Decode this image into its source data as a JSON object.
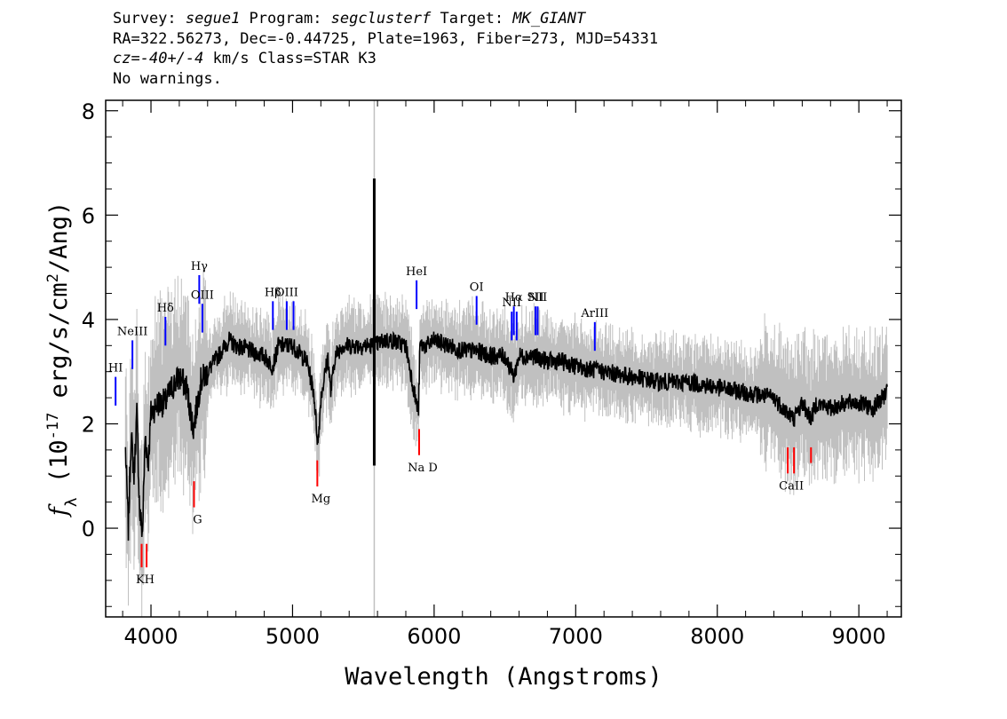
{
  "header": {
    "survey_label": "Survey: ",
    "survey_value": "segue1",
    "program_label": " Program: ",
    "program_value": "segclusterf",
    "target_label": " Target: ",
    "target_value": "MK_GIANT",
    "line2": "RA=322.56273, Dec=-0.44725, Plate=1963, Fiber=273, MJD=54331",
    "cz_label": "cz",
    "cz_eq": "=",
    "cz_value": "-40+/-4",
    "cz_rest": " km/s Class=STAR K3",
    "warnings": "No warnings."
  },
  "chart_data": {
    "type": "line",
    "xlabel": "Wavelength (Angstroms)",
    "ylabel": "f_λ (10^-17 erg/s/cm^2/Ang)",
    "xlim": [
      3680,
      9300
    ],
    "ylim": [
      -1.7,
      8.2
    ],
    "xticks": [
      "4000",
      "5000",
      "6000",
      "7000",
      "8000",
      "9000"
    ],
    "yticks": [
      "0",
      "2",
      "4",
      "6",
      "8"
    ],
    "colors": {
      "flux": "#000000",
      "error": "#c0c0c0",
      "emission": "#0000ff",
      "absorption": "#ff0000"
    },
    "flux_series": {
      "name": "",
      "x": [
        3820,
        3840,
        3860,
        3880,
        3900,
        3920,
        3940,
        3960,
        3980,
        4000,
        4050,
        4100,
        4150,
        4200,
        4250,
        4300,
        4350,
        4400,
        4450,
        4500,
        4550,
        4600,
        4700,
        4800,
        4860,
        4900,
        5000,
        5100,
        5150,
        5170,
        5180,
        5200,
        5250,
        5270,
        5300,
        5350,
        5400,
        5500,
        5577,
        5650,
        5700,
        5800,
        5880,
        5890,
        5900,
        5950,
        6000,
        6100,
        6200,
        6300,
        6400,
        6500,
        6563,
        6600,
        6700,
        6800,
        6900,
        7000,
        7200,
        7400,
        7600,
        7800,
        8000,
        8200,
        8400,
        8500,
        8542,
        8600,
        8662,
        8700,
        8800,
        8900,
        9000,
        9100,
        9200
      ],
      "y": [
        1.5,
        0.0,
        1.8,
        1.0,
        2.2,
        0.3,
        -0.1,
        1.8,
        1.2,
        2.2,
        2.4,
        2.4,
        2.7,
        2.9,
        2.7,
        1.9,
        2.8,
        3.0,
        3.2,
        3.4,
        3.6,
        3.5,
        3.4,
        3.3,
        3.1,
        3.5,
        3.5,
        3.2,
        2.6,
        1.9,
        1.6,
        2.5,
        3.3,
        2.6,
        3.3,
        3.5,
        3.5,
        3.5,
        3.5,
        3.6,
        3.6,
        3.5,
        2.3,
        2.3,
        3.5,
        3.5,
        3.6,
        3.5,
        3.4,
        3.4,
        3.3,
        3.3,
        2.9,
        3.3,
        3.3,
        3.2,
        3.2,
        3.1,
        3.0,
        2.9,
        2.8,
        2.8,
        2.7,
        2.6,
        2.5,
        2.2,
        2.1,
        2.4,
        2.1,
        2.4,
        2.3,
        2.4,
        2.4,
        2.3,
        2.6
      ]
    },
    "sky_spike": {
      "x": 5577,
      "flux_range": [
        1.2,
        6.7
      ],
      "error_range": [
        -1.7,
        8.2
      ]
    },
    "emission_lines": [
      {
        "label": "HI",
        "x": 3750,
        "y_bottom": 2.35,
        "y_top": 2.9
      },
      {
        "label": "NeIII",
        "x": 3869,
        "y_bottom": 3.05,
        "y_top": 3.6
      },
      {
        "label": "Hδ",
        "x": 4102,
        "y_bottom": 3.5,
        "y_top": 4.05
      },
      {
        "label": "Hγ",
        "x": 4341,
        "y_bottom": 4.3,
        "y_top": 4.85
      },
      {
        "label": "OIII",
        "x": 4363,
        "y_bottom": 3.75,
        "y_top": 4.3
      },
      {
        "label": "Hβ",
        "x": 4861,
        "y_bottom": 3.8,
        "y_top": 4.35
      },
      {
        "label": "OIII",
        "x": 4959,
        "y_bottom": 3.8,
        "y_top": 4.35
      },
      {
        "label": "",
        "x": 5007,
        "y_bottom": 3.8,
        "y_top": 4.35
      },
      {
        "label": "HeI",
        "x": 5876,
        "y_bottom": 4.2,
        "y_top": 4.75
      },
      {
        "label": "OI",
        "x": 6300,
        "y_bottom": 3.9,
        "y_top": 4.45
      },
      {
        "label": "NII",
        "x": 6548,
        "y_bottom": 3.6,
        "y_top": 4.15
      },
      {
        "label": "Hα",
        "x": 6563,
        "y_bottom": 3.7,
        "y_top": 4.25
      },
      {
        "label": "",
        "x": 6583,
        "y_bottom": 3.6,
        "y_top": 4.15
      },
      {
        "label": "SII",
        "x": 6716,
        "y_bottom": 3.7,
        "y_top": 4.25
      },
      {
        "label": "NII",
        "x": 6731,
        "y_bottom": 3.7,
        "y_top": 4.25
      },
      {
        "label": "ArIII",
        "x": 7135,
        "y_bottom": 3.4,
        "y_top": 3.95
      }
    ],
    "absorption_lines": [
      {
        "label": "KH",
        "x": 3934,
        "y_top": -0.3,
        "y_bottom": -0.75
      },
      {
        "label": "",
        "x": 3969,
        "y_top": -0.3,
        "y_bottom": -0.75
      },
      {
        "label": "G",
        "x": 4304,
        "y_top": 0.9,
        "y_bottom": 0.4
      },
      {
        "label": "Mg",
        "x": 5175,
        "y_top": 1.3,
        "y_bottom": 0.8
      },
      {
        "label": "Na D",
        "x": 5894,
        "y_top": 1.9,
        "y_bottom": 1.4
      },
      {
        "label": "CaII",
        "x": 8498,
        "y_top": 1.55,
        "y_bottom": 1.05
      },
      {
        "label": "",
        "x": 8542,
        "y_top": 1.55,
        "y_bottom": 1.05
      },
      {
        "label": "",
        "x": 8662,
        "y_top": 1.55,
        "y_bottom": 1.25
      }
    ]
  }
}
